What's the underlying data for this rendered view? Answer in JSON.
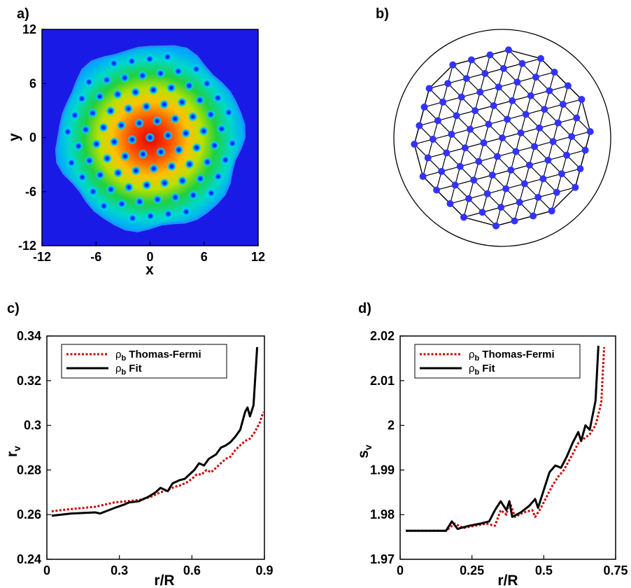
{
  "chart_data": [
    {
      "panel": "a)",
      "type": "heatmap",
      "xlabel": "x",
      "ylabel": "y",
      "xlim": [
        -12,
        12
      ],
      "ylim": [
        -12,
        12
      ],
      "xticks": [
        "-12",
        "-6",
        "0",
        "6",
        "12"
      ],
      "yticks": [
        "-12",
        "-6",
        "0",
        "6",
        "12"
      ],
      "colormap": [
        "#0000ff",
        "#00b0ff",
        "#00e8d0",
        "#20d040",
        "#b8e000",
        "#ffd000",
        "#ff6000",
        "#e80000"
      ],
      "background_color": "#1a1ae6",
      "cloud_radius": 10.0,
      "vortex_spacing": 2.0
    },
    {
      "panel": "b)",
      "type": "scatter",
      "description_color_points": "#3333ff",
      "lattice_radius": 4.6,
      "lattice_spacing": 1,
      "lattice_rotation_deg": 15
    },
    {
      "panel": "c)",
      "type": "line",
      "xlabel": "r/R",
      "ylabel": "r",
      "ylabel_sub": "v",
      "xlim": [
        0,
        0.9
      ],
      "ylim": [
        0.24,
        0.34
      ],
      "xticks": [
        0,
        0.3,
        0.6,
        0.9
      ],
      "xtick_labels": [
        "0",
        "0.3",
        "0.6",
        "0.9"
      ],
      "yticks": [
        0.24,
        0.26,
        0.28,
        0.3,
        0.32,
        0.34
      ],
      "ytick_labels": [
        "0.24",
        "0.26",
        "0.28",
        "0.3",
        "0.32",
        "0.34"
      ],
      "legend": [
        {
          "sym": "ρ",
          "sub": "b",
          "text": "Thomas-Fermi",
          "color": "#cc0000",
          "dash": true
        },
        {
          "sym": "ρ",
          "sub": "b",
          "text": "Fit",
          "color": "#000000",
          "dash": false
        }
      ],
      "legend_position": "top-left",
      "series": [
        {
          "color": "#cc0000",
          "dash": true,
          "x": [
            0.02,
            0.1,
            0.2,
            0.28,
            0.33,
            0.38,
            0.43,
            0.47,
            0.5,
            0.53,
            0.55,
            0.58,
            0.6,
            0.62,
            0.64,
            0.66,
            0.68,
            0.7,
            0.72,
            0.74,
            0.76,
            0.78,
            0.8,
            0.82,
            0.84,
            0.86,
            0.88,
            0.895
          ],
          "y": [
            0.2615,
            0.2625,
            0.2635,
            0.2655,
            0.266,
            0.2665,
            0.268,
            0.27,
            0.271,
            0.2725,
            0.273,
            0.2745,
            0.276,
            0.278,
            0.278,
            0.28,
            0.279,
            0.281,
            0.283,
            0.285,
            0.286,
            0.289,
            0.291,
            0.293,
            0.294,
            0.297,
            0.301,
            0.306
          ]
        },
        {
          "color": "#000000",
          "dash": false,
          "x": [
            0.02,
            0.1,
            0.2,
            0.22,
            0.28,
            0.32,
            0.34,
            0.38,
            0.42,
            0.45,
            0.47,
            0.5,
            0.52,
            0.55,
            0.57,
            0.6,
            0.61,
            0.63,
            0.65,
            0.67,
            0.7,
            0.72,
            0.74,
            0.76,
            0.78,
            0.8,
            0.81,
            0.82,
            0.83,
            0.84,
            0.855,
            0.87
          ],
          "y": [
            0.2595,
            0.2605,
            0.261,
            0.2605,
            0.263,
            0.2645,
            0.2655,
            0.266,
            0.268,
            0.27,
            0.272,
            0.2705,
            0.274,
            0.2755,
            0.276,
            0.279,
            0.28,
            0.283,
            0.282,
            0.285,
            0.287,
            0.29,
            0.291,
            0.2925,
            0.295,
            0.298,
            0.302,
            0.306,
            0.308,
            0.304,
            0.309,
            0.335
          ]
        }
      ]
    },
    {
      "panel": "d)",
      "type": "line",
      "xlabel": "r/R",
      "ylabel": "s",
      "ylabel_sub": "v",
      "xlim": [
        0,
        0.75
      ],
      "ylim": [
        1.97,
        2.02
      ],
      "xticks": [
        0,
        0.25,
        0.5,
        0.75
      ],
      "xtick_labels": [
        "0",
        "0.25",
        "0.5",
        "0.75"
      ],
      "yticks": [
        1.97,
        1.98,
        1.99,
        2.0,
        2.01,
        2.02
      ],
      "ytick_labels": [
        "1.97",
        "1.98",
        "1.99",
        "2",
        "2.01",
        "2.02"
      ],
      "legend": [
        {
          "sym": "ρ",
          "sub": "b",
          "text": "Thomas-Fermi",
          "color": "#cc0000",
          "dash": true
        },
        {
          "sym": "ρ",
          "sub": "b",
          "text": "Fit",
          "color": "#000000",
          "dash": false
        }
      ],
      "legend_position": "top-left",
      "series": [
        {
          "color": "#cc0000",
          "dash": true,
          "x": [
            0.02,
            0.1,
            0.16,
            0.19,
            0.22,
            0.26,
            0.3,
            0.33,
            0.35,
            0.37,
            0.38,
            0.4,
            0.43,
            0.46,
            0.47,
            0.49,
            0.51,
            0.53,
            0.55,
            0.57,
            0.6,
            0.62,
            0.64,
            0.66,
            0.68,
            0.7,
            0.71
          ],
          "y": [
            1.9764,
            1.9764,
            1.9764,
            1.978,
            1.977,
            1.9775,
            1.978,
            1.9775,
            1.981,
            1.98,
            1.983,
            1.9795,
            1.9805,
            1.981,
            1.9795,
            1.9815,
            1.984,
            1.9865,
            1.9885,
            1.99,
            1.9935,
            1.996,
            1.997,
            1.998,
            2.0,
            2.005,
            2.0175
          ]
        },
        {
          "color": "#000000",
          "dash": false,
          "x": [
            0.02,
            0.1,
            0.16,
            0.18,
            0.2,
            0.24,
            0.28,
            0.31,
            0.33,
            0.35,
            0.37,
            0.38,
            0.39,
            0.42,
            0.45,
            0.47,
            0.48,
            0.5,
            0.52,
            0.54,
            0.56,
            0.58,
            0.6,
            0.62,
            0.63,
            0.645,
            0.66,
            0.68,
            0.69
          ],
          "y": [
            1.9764,
            1.9764,
            1.9764,
            1.9785,
            1.9768,
            1.9775,
            1.978,
            1.9785,
            1.981,
            1.983,
            1.981,
            1.983,
            1.9795,
            1.9805,
            1.982,
            1.9835,
            1.9815,
            1.9855,
            1.9895,
            1.991,
            1.9905,
            1.993,
            1.996,
            1.9985,
            1.9965,
            2.0,
            1.999,
            2.0055,
            2.0178
          ]
        }
      ]
    }
  ]
}
